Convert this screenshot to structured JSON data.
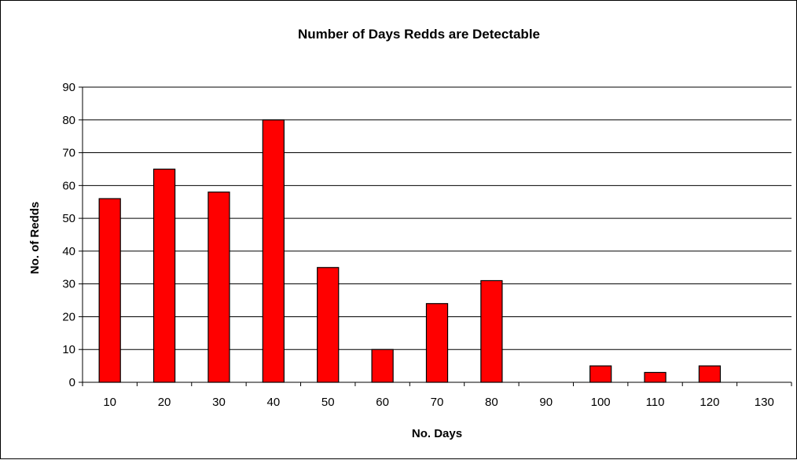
{
  "chart_data": {
    "type": "bar",
    "title": "Number of Days Redds are Detectable",
    "xlabel": "No. Days",
    "ylabel": "No. of Redds",
    "categories": [
      "10",
      "20",
      "30",
      "40",
      "50",
      "60",
      "70",
      "80",
      "90",
      "100",
      "110",
      "120",
      "130"
    ],
    "values": [
      56,
      65,
      58,
      80,
      35,
      10,
      24,
      31,
      0,
      5,
      3,
      5,
      0
    ],
    "ylim": [
      0,
      90
    ],
    "yticks": [
      "0",
      "10",
      "20",
      "30",
      "40",
      "50",
      "60",
      "70",
      "80",
      "90"
    ],
    "grid": true,
    "bar_color": "#ff0000",
    "legend": "none"
  }
}
